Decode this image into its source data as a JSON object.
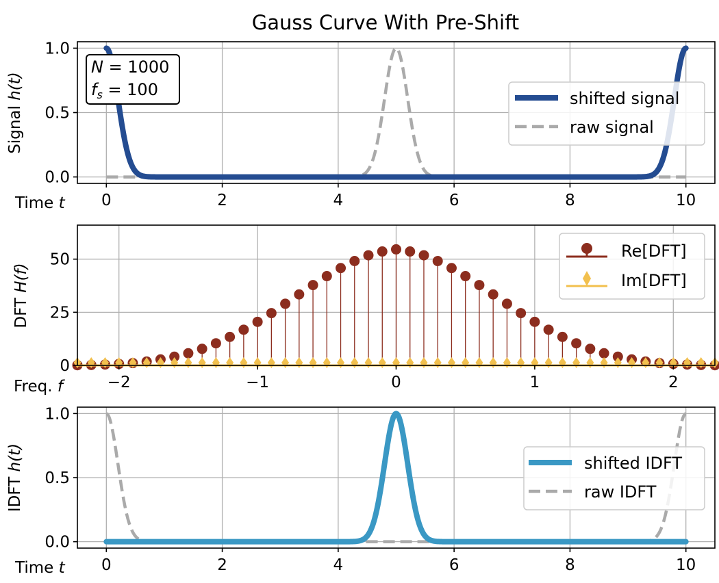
{
  "title": "Gauss Curve With Pre-Shift",
  "colors": {
    "shifted_signal": "#244c91",
    "raw": "#aaaaaa",
    "re_dft": "#8c2d1e",
    "im_dft": "#f2c04e",
    "shifted_idft": "#3a98c4",
    "grid": "#b0b0b0"
  },
  "chart_data": [
    {
      "id": "signal",
      "type": "line",
      "ylabel_text": "Signal ",
      "ylabel_math": "h(t)",
      "xlabel_text": "Time ",
      "xlabel_math": "t",
      "xlim": [
        -0.5,
        10.5
      ],
      "ylim": [
        -0.05,
        1.05
      ],
      "xticks": [
        0,
        2,
        4,
        6,
        8,
        10
      ],
      "xtick_labels": [
        "0",
        "2",
        "4",
        "6",
        "8",
        "10"
      ],
      "yticks": [
        0.0,
        0.5,
        1.0
      ],
      "ytick_labels": [
        "0.0",
        "0.5",
        "1.0"
      ],
      "grid": true,
      "annotation": {
        "line1": "N = 1000",
        "line2": "f_s = 100",
        "line2_var": "f",
        "line2_sub": "s",
        "line2_rest": " = 100",
        "line1_var": "N",
        "line1_rest": " = 1000"
      },
      "legend": {
        "location": "center-right",
        "entries": [
          "shifted signal",
          "raw signal"
        ]
      },
      "series": [
        {
          "name": "shifted signal",
          "function": "wrapped_gauss",
          "center": 0,
          "sigma": 0.2,
          "x_start": 0,
          "x_end": 10,
          "style": "solid"
        },
        {
          "name": "raw signal",
          "function": "gauss",
          "center": 5,
          "sigma": 0.2,
          "x_start": 0,
          "x_end": 10,
          "style": "dashed"
        }
      ]
    },
    {
      "id": "dft",
      "type": "stem",
      "ylabel_text": "DFT ",
      "ylabel_math": "H(f)",
      "xlabel_text": "Freq. ",
      "xlabel_math": "f",
      "xlim": [
        -2.3,
        2.3
      ],
      "ylim": [
        0,
        66
      ],
      "xticks": [
        -2,
        -1,
        0,
        1,
        2
      ],
      "xtick_labels": [
        "−2",
        "−1",
        "0",
        "1",
        "2"
      ],
      "yticks": [
        0,
        25,
        50
      ],
      "ytick_labels": [
        "0",
        "25",
        "50"
      ],
      "grid": true,
      "legend": {
        "location": "top-right",
        "entries": [
          "Re[DFT]",
          "Im[DFT]"
        ]
      },
      "frequencies": [
        -2.3,
        -2.2,
        -2.1,
        -2.0,
        -1.9,
        -1.8,
        -1.7,
        -1.6,
        -1.5,
        -1.4,
        -1.3,
        -1.2,
        -1.1,
        -1.0,
        -0.9,
        -0.8,
        -0.7,
        -0.6,
        -0.5,
        -0.4,
        -0.3,
        -0.2,
        -0.1,
        0.0,
        0.1,
        0.2,
        0.3,
        0.4,
        0.5,
        0.6,
        0.7,
        0.8,
        0.9,
        1.0,
        1.1,
        1.2,
        1.3,
        1.4,
        1.5,
        1.6,
        1.7,
        1.8,
        1.9,
        2.0,
        2.1,
        2.2,
        2.3
      ],
      "series": [
        {
          "name": "Re[DFT]",
          "values": [
            0.1,
            0.2,
            0.4,
            0.7,
            1.1,
            1.8,
            2.8,
            4.1,
            5.7,
            7.8,
            10.4,
            13.4,
            16.8,
            20.5,
            24.6,
            29.0,
            33.4,
            37.8,
            42.0,
            45.8,
            49.1,
            51.8,
            53.6,
            54.6,
            53.6,
            51.8,
            49.1,
            45.8,
            42.0,
            37.8,
            33.4,
            29.0,
            24.6,
            20.5,
            16.8,
            13.4,
            10.4,
            7.8,
            5.7,
            4.1,
            2.8,
            1.8,
            1.1,
            0.7,
            0.4,
            0.2,
            0.1
          ]
        },
        {
          "name": "Im[DFT]",
          "values": [
            0,
            0,
            0,
            0,
            0,
            0,
            0,
            0,
            0,
            0,
            0,
            0,
            0,
            0,
            0,
            0,
            0,
            0,
            0,
            0,
            0,
            0,
            0,
            0,
            0,
            0,
            0,
            0,
            0,
            0,
            0,
            0,
            0,
            0,
            0,
            0,
            0,
            0,
            0,
            0,
            0,
            0,
            0,
            0,
            0,
            0,
            0
          ]
        }
      ]
    },
    {
      "id": "idft",
      "type": "line",
      "ylabel_text": "IDFT ",
      "ylabel_math": "h(t)",
      "xlabel_text": "Time ",
      "xlabel_math": "t",
      "xlim": [
        -0.5,
        10.5
      ],
      "ylim": [
        -0.05,
        1.05
      ],
      "xticks": [
        0,
        2,
        4,
        6,
        8,
        10
      ],
      "xtick_labels": [
        "0",
        "2",
        "4",
        "6",
        "8",
        "10"
      ],
      "yticks": [
        0.0,
        0.5,
        1.0
      ],
      "ytick_labels": [
        "0.0",
        "0.5",
        "1.0"
      ],
      "grid": true,
      "legend": {
        "location": "center-right",
        "entries": [
          "shifted IDFT",
          "raw IDFT"
        ]
      },
      "series": [
        {
          "name": "shifted IDFT",
          "function": "gauss",
          "center": 5,
          "sigma": 0.2,
          "x_start": 0,
          "x_end": 10,
          "style": "solid"
        },
        {
          "name": "raw IDFT",
          "function": "wrapped_gauss",
          "center": 0,
          "sigma": 0.2,
          "x_start": 0,
          "x_end": 10,
          "style": "dashed"
        }
      ]
    }
  ]
}
